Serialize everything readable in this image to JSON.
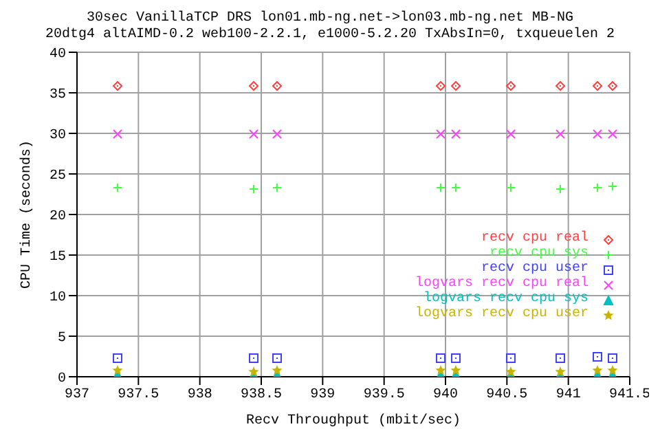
{
  "chart_data": {
    "type": "scatter",
    "title": "30sec VanillaTCP DRS lon01.mb-ng.net->lon03.mb-ng.net MB-NG",
    "subtitle": "20dtg4 altAIMD-0.2 web100-2.2.1, e1000-5.2.20 TxAbsIn=0, txqueuelen 2",
    "xlabel": "Recv Throughput (mbit/sec)",
    "ylabel": "CPU Time (seconds)",
    "x": [
      937.33,
      938.43,
      938.62,
      939.95,
      940.08,
      940.53,
      940.93,
      941.23,
      941.36
    ],
    "series": [
      {
        "name": "recv cpu real",
        "color": "#ff4040",
        "marker": "diamond",
        "values": [
          36,
          36,
          36,
          36,
          36,
          36,
          36,
          36,
          36
        ]
      },
      {
        "name": "recv cpu sys",
        "color": "#40ff40",
        "marker": "plus",
        "values": [
          23.4,
          23.2,
          23.4,
          23.4,
          23.4,
          23.4,
          23.2,
          23.4,
          23.5
        ]
      },
      {
        "name": "recv cpu user",
        "color": "#4040ff",
        "marker": "square",
        "values": [
          2.4,
          2.4,
          2.4,
          2.4,
          2.4,
          2.4,
          2.3,
          2.6,
          2.4
        ]
      },
      {
        "name": "logvars recv cpu real",
        "color": "#ff40ff",
        "marker": "cross",
        "values": [
          30,
          30,
          30,
          30,
          30,
          30,
          30,
          30,
          30
        ]
      },
      {
        "name": "logvars recv cpu sys",
        "color": "#00c0c0",
        "marker": "triangle",
        "values": [
          0.4,
          0.4,
          0.4,
          0.4,
          0.4,
          0.4,
          0.4,
          0.4,
          0.4
        ]
      },
      {
        "name": "logvars recv cpu user",
        "color": "#c8b400",
        "marker": "star",
        "values": [
          0.8,
          0.7,
          0.8,
          0.8,
          0.8,
          0.7,
          0.6,
          0.8,
          0.9
        ]
      }
    ],
    "xlim": [
      937,
      941.5
    ],
    "xticks": [
      937,
      937.5,
      938,
      938.5,
      939,
      939.5,
      940,
      940.5,
      941,
      941.5
    ],
    "ylim": [
      0,
      40
    ],
    "yticks": [
      0,
      5,
      10,
      15,
      20,
      25,
      30,
      35,
      40
    ],
    "grid": true,
    "legend": "right"
  }
}
